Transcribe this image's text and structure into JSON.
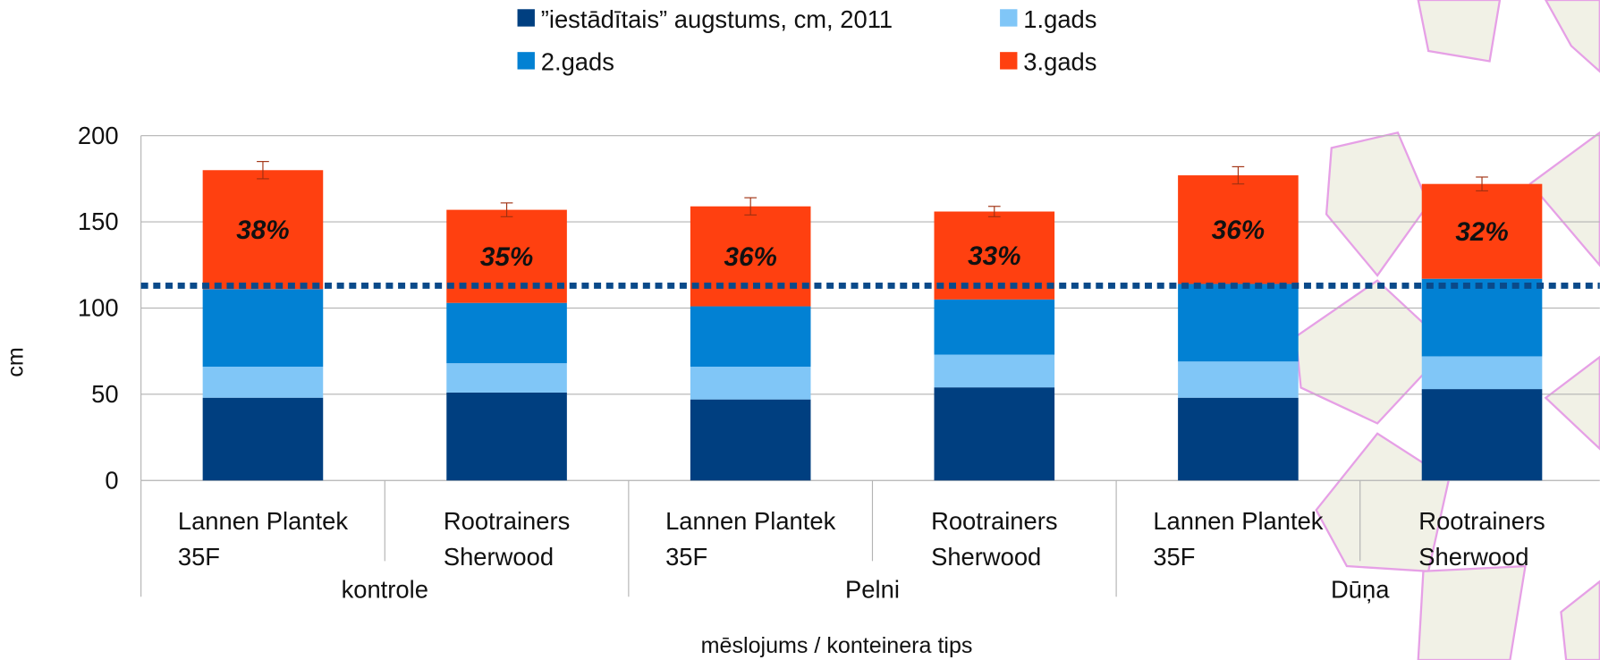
{
  "chart_data": {
    "type": "stacked_bar",
    "y_label": "cm",
    "x_label": "mēslojums / konteinera tips",
    "categories": [
      [
        "Lannen Plantek",
        "35F"
      ],
      [
        "Rootrainers",
        "Sherwood"
      ],
      [
        "Lannen Plantek",
        "35F"
      ],
      [
        "Rootrainers",
        "Sherwood"
      ],
      [
        "Lannen Plantek",
        "35F"
      ],
      [
        "Rootrainers",
        "Sherwood"
      ]
    ],
    "groups": [
      "kontrole",
      "Pelni",
      "Dūņa"
    ],
    "series": [
      {
        "name": "”iestādītais” augstums, cm, 2011",
        "color": "#003f80",
        "values": [
          48,
          51,
          47,
          54,
          48,
          53
        ]
      },
      {
        "name": "1.gads",
        "color": "#80c6f7",
        "values": [
          18,
          17,
          19,
          19,
          21,
          19
        ]
      },
      {
        "name": "2.gads",
        "color": "#0281d3",
        "values": [
          45,
          35,
          35,
          32,
          45,
          45
        ]
      },
      {
        "name": "3.gads",
        "color": "#ff4010",
        "values": [
          69,
          54,
          58,
          51,
          63,
          55
        ],
        "errors": [
          5,
          4,
          5,
          3,
          5,
          4
        ],
        "segment_labels": [
          "38%",
          "35%",
          "36%",
          "33%",
          "36%",
          "32%"
        ]
      }
    ],
    "reference_line": 113,
    "ylim": [
      0,
      200
    ],
    "yticks": [
      0,
      50,
      100,
      150,
      200
    ],
    "grid": true
  }
}
